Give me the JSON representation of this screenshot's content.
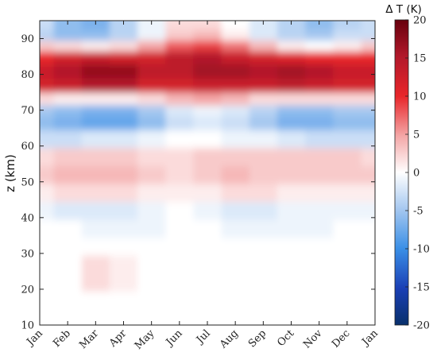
{
  "chart_data": {
    "type": "heatmap",
    "title": "",
    "xlabel": "",
    "ylabel": "z (km)",
    "colorbar_label": "Δ T (K)",
    "x_ticks": [
      "Jan",
      "Feb",
      "Mar",
      "Apr",
      "May",
      "Jun",
      "Jul",
      "Aug",
      "Sep",
      "Oct",
      "Nov",
      "Dec",
      "Jan"
    ],
    "y_ticks": [
      "10",
      "20",
      "30",
      "40",
      "50",
      "60",
      "70",
      "80",
      "90"
    ],
    "colorbar_ticks": [
      "20",
      "15",
      "10",
      "5",
      "0",
      "-5",
      "-10",
      "-15",
      "-20"
    ],
    "ylim": [
      10,
      95
    ],
    "clim": [
      -20,
      20
    ],
    "colormap": {
      "negative": "#08306b",
      "zero": "#ffffff",
      "positive": "#67000d"
    },
    "month_positions": [
      0,
      1,
      2,
      3,
      4,
      5,
      6,
      7,
      8,
      9,
      10,
      11,
      12
    ],
    "altitude_km": [
      12,
      27,
      32,
      37,
      42,
      47,
      52,
      57,
      62,
      67,
      70,
      73,
      77,
      81,
      85,
      88,
      91,
      94
    ],
    "delta_T": [
      [
        0,
        0,
        0,
        0,
        0,
        0,
        0,
        0,
        0,
        0,
        0,
        0,
        0
      ],
      [
        0,
        0,
        2,
        1,
        0,
        0,
        0,
        0,
        0,
        0,
        0,
        0,
        0
      ],
      [
        0,
        0,
        0,
        0,
        0,
        0,
        0,
        0,
        0,
        0,
        0,
        0,
        0
      ],
      [
        0,
        0,
        -1,
        -1,
        -1,
        0,
        0,
        -1,
        -1,
        -1,
        -1,
        0,
        0
      ],
      [
        -1,
        -2,
        -2,
        -2,
        -1,
        0,
        -1,
        -2,
        -2,
        -1,
        -1,
        -1,
        -1
      ],
      [
        1,
        2,
        2,
        2,
        1,
        1,
        1,
        2,
        2,
        1,
        1,
        1,
        1
      ],
      [
        3,
        4,
        4,
        4,
        3,
        2,
        3,
        4,
        3,
        3,
        3,
        3,
        3
      ],
      [
        2,
        3,
        3,
        3,
        2,
        2,
        3,
        3,
        3,
        3,
        3,
        3,
        2
      ],
      [
        -3,
        -3,
        -2,
        -2,
        -1,
        0,
        0,
        -1,
        -1,
        -2,
        -3,
        -3,
        -3
      ],
      [
        -6,
        -7,
        -8,
        -8,
        -6,
        -3,
        -2,
        -3,
        -5,
        -7,
        -7,
        -6,
        -6
      ],
      [
        -5,
        -6,
        -7,
        -7,
        -5,
        -2,
        -1,
        -2,
        -4,
        -6,
        -6,
        -5,
        -5
      ],
      [
        2,
        1,
        1,
        1,
        2,
        4,
        5,
        4,
        2,
        2,
        2,
        2,
        2
      ],
      [
        12,
        13,
        15,
        15,
        12,
        12,
        13,
        13,
        13,
        14,
        13,
        12,
        12
      ],
      [
        13,
        15,
        17,
        17,
        14,
        14,
        16,
        16,
        15,
        16,
        15,
        13,
        13
      ],
      [
        10,
        12,
        13,
        12,
        12,
        14,
        15,
        13,
        12,
        11,
        10,
        10,
        10
      ],
      [
        3,
        2,
        1,
        2,
        5,
        8,
        9,
        7,
        4,
        1,
        0,
        1,
        3
      ],
      [
        -4,
        -6,
        -6,
        -4,
        -1,
        3,
        4,
        1,
        -2,
        -4,
        -5,
        -3,
        -3
      ],
      [
        -3,
        -6,
        -7,
        -4,
        -1,
        2,
        2,
        0,
        -2,
        -4,
        -6,
        -4,
        -3
      ]
    ]
  }
}
